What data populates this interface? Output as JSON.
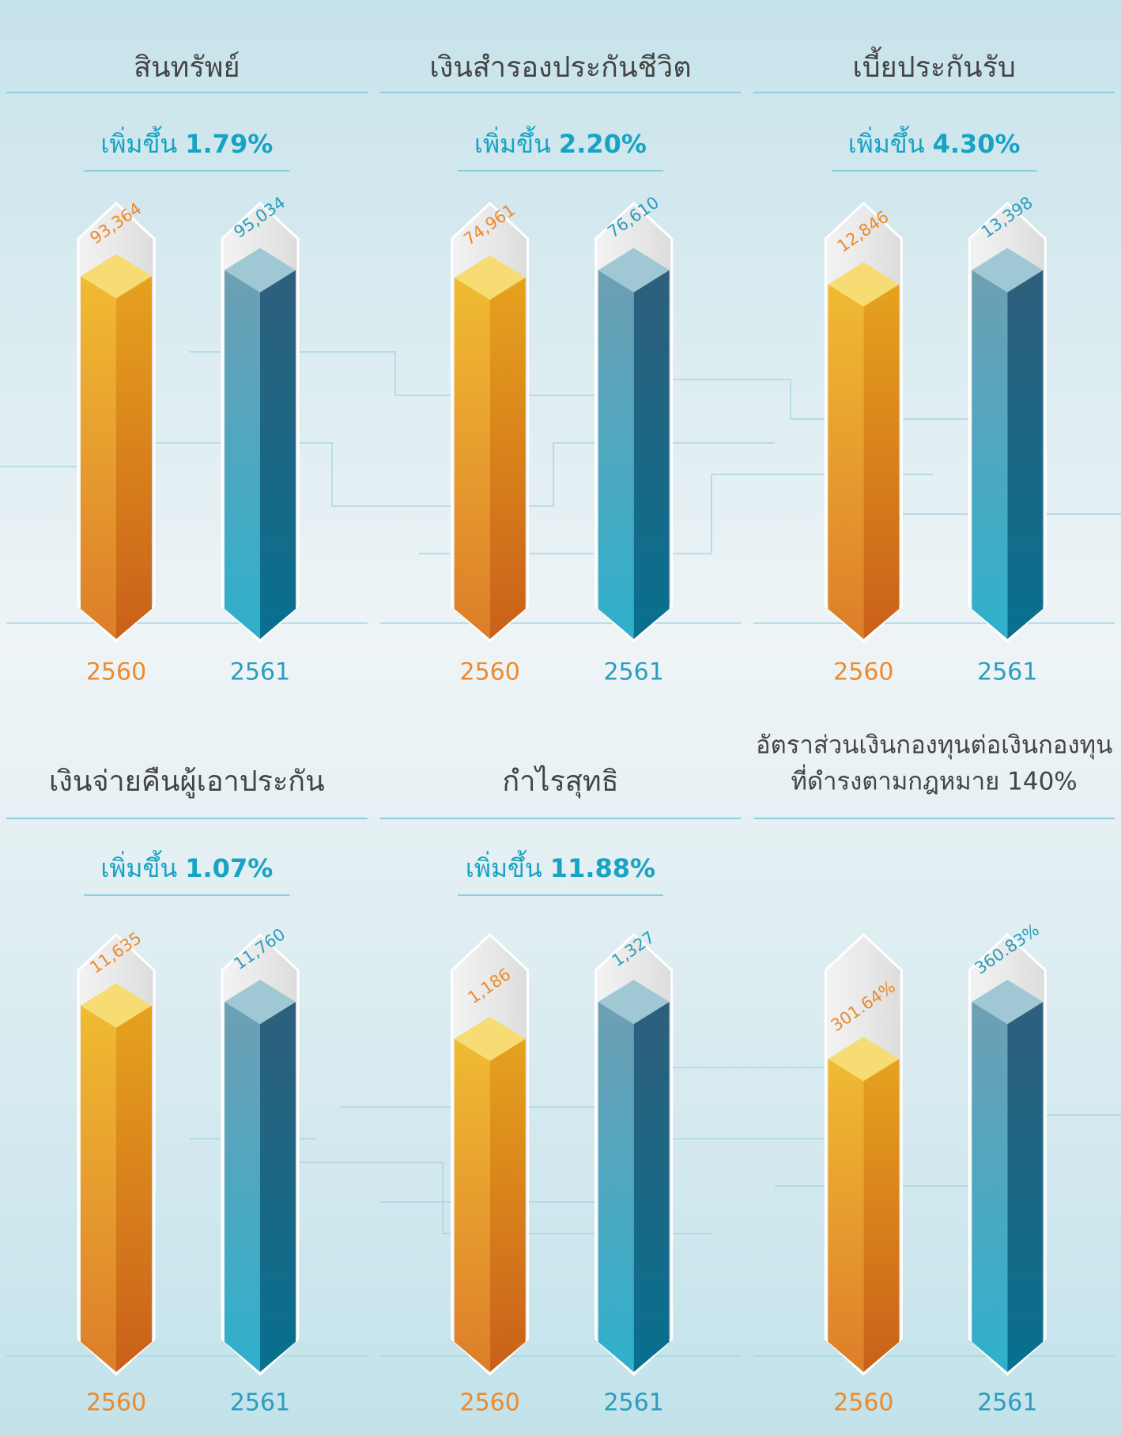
{
  "chart_data": [
    {
      "type": "bar",
      "title": [
        "สินทรัพย์"
      ],
      "subtitle": {
        "text": "เพิ่มขึ้น",
        "value": "1.79%"
      },
      "categories": [
        "2560",
        "2561"
      ],
      "values": [
        93364,
        95034
      ],
      "value_labels": [
        "93,364",
        "95,034"
      ],
      "colors": [
        "#e69a1e",
        "#2f8fb0"
      ],
      "text_colors": [
        "#ec8a2c",
        "#2b9dbd"
      ]
    },
    {
      "type": "bar",
      "title": [
        "เงินสำรองประกันชีวิต"
      ],
      "subtitle": {
        "text": "เพิ่มขึ้น",
        "value": "2.20%"
      },
      "categories": [
        "2560",
        "2561"
      ],
      "values": [
        74961,
        76610
      ],
      "value_labels": [
        "74,961",
        "76,610"
      ],
      "colors": [
        "#e69a1e",
        "#2f8fb0"
      ],
      "text_colors": [
        "#ec8a2c",
        "#2b9dbd"
      ]
    },
    {
      "type": "bar",
      "title": [
        "เบี้ยประกันรับ"
      ],
      "subtitle": {
        "text": "เพิ่มขึ้น",
        "value": "4.30%"
      },
      "categories": [
        "2560",
        "2561"
      ],
      "values": [
        12846,
        13398
      ],
      "value_labels": [
        "12,846",
        "13,398"
      ],
      "colors": [
        "#e69a1e",
        "#2f8fb0"
      ],
      "text_colors": [
        "#ec8a2c",
        "#2b9dbd"
      ]
    },
    {
      "type": "bar",
      "title": [
        "เงินจ่ายคืนผู้เอาประกัน"
      ],
      "subtitle": {
        "text": "เพิ่มขึ้น",
        "value": "1.07%"
      },
      "categories": [
        "2560",
        "2561"
      ],
      "values": [
        11635,
        11760
      ],
      "value_labels": [
        "11,635",
        "11,760"
      ],
      "colors": [
        "#e69a1e",
        "#2f8fb0"
      ],
      "text_colors": [
        "#ec8a2c",
        "#2b9dbd"
      ]
    },
    {
      "type": "bar",
      "title": [
        "กำไรสุทธิ"
      ],
      "subtitle": {
        "text": "เพิ่มขึ้น",
        "value": "11.88%"
      },
      "categories": [
        "2560",
        "2561"
      ],
      "values": [
        1186,
        1327
      ],
      "value_labels": [
        "1,186",
        "1,327"
      ],
      "colors": [
        "#e69a1e",
        "#2f8fb0"
      ],
      "text_colors": [
        "#ec8a2c",
        "#2b9dbd"
      ]
    },
    {
      "type": "bar",
      "title": [
        "อัตราส่วนเงินกองทุนต่อเงินกองทุน",
        "ที่ดำรงตามกฎหมาย 140%"
      ],
      "categories": [
        "2560",
        "2561"
      ],
      "values": [
        301.64,
        360.83
      ],
      "value_labels": [
        "301.64%",
        "360.83%"
      ],
      "colors": [
        "#e69a1e",
        "#2f8fb0"
      ],
      "text_colors": [
        "#ec8a2c",
        "#2b9dbd"
      ]
    }
  ]
}
